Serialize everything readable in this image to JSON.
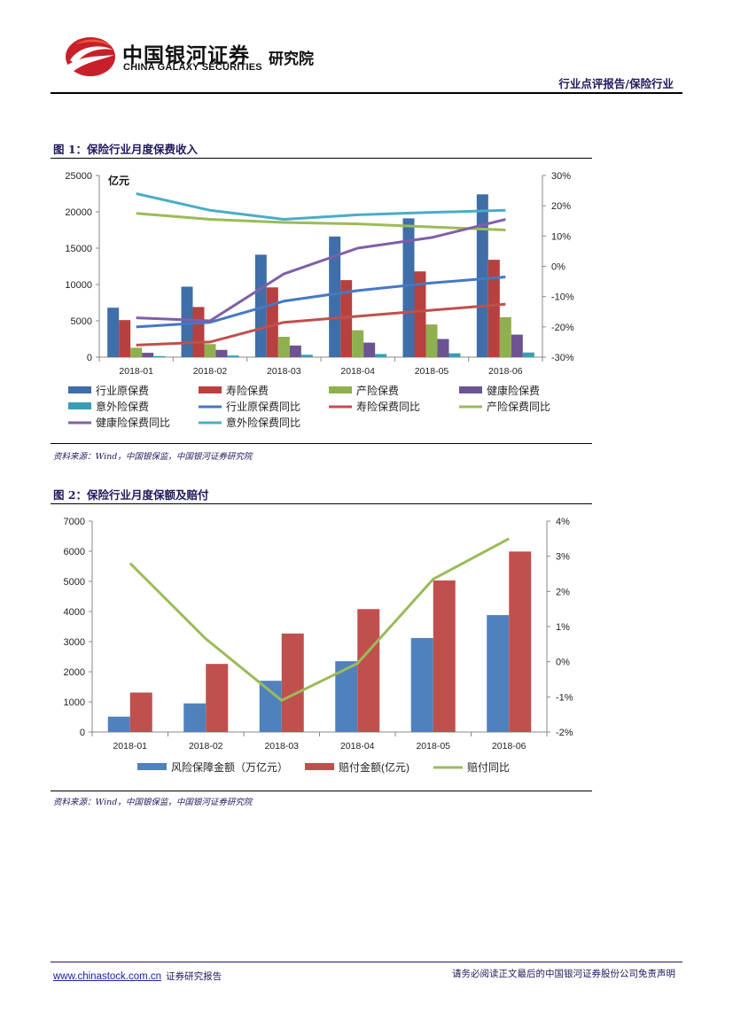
{
  "header": {
    "logo_cn": "中国银河证券",
    "logo_en": "CHINA GALAXY SECURITIES",
    "institute": "研究院",
    "doc_type": "行业点评报告/保险行业"
  },
  "figure1": {
    "title": "图 1：保险行业月度保费收入",
    "source": "资料来源：Wind，中国银保监，中国银河证券研究院",
    "chart_data": {
      "type": "bar",
      "title": "保险行业月度保费收入",
      "unit_label": "亿元",
      "categories": [
        "2018-01",
        "2018-02",
        "2018-03",
        "2018-04",
        "2018-05",
        "2018-06"
      ],
      "y_left": {
        "min": 0,
        "max": 25000,
        "ticks": [
          0,
          5000,
          10000,
          15000,
          20000,
          25000
        ],
        "tick_labels": [
          "0",
          "5000",
          "10000",
          "15000",
          "20000",
          "25000"
        ]
      },
      "y_right": {
        "min": -30,
        "max": 30,
        "ticks": [
          -30,
          -20,
          -10,
          0,
          10,
          20,
          30
        ],
        "tick_labels": [
          "-30%",
          "-20%",
          "-10%",
          "0%",
          "10%",
          "20%",
          "30%"
        ]
      },
      "bar_series": [
        {
          "name": "行业原保费",
          "color": "#3f6ea8",
          "values": [
            6800,
            9700,
            14100,
            16600,
            19100,
            22400
          ]
        },
        {
          "name": "寿险保费",
          "color": "#b6413f",
          "values": [
            5100,
            6900,
            9600,
            10600,
            11800,
            13400
          ]
        },
        {
          "name": "产险保费",
          "color": "#8fb04e",
          "values": [
            1300,
            1800,
            2800,
            3700,
            4500,
            5500
          ]
        },
        {
          "name": "健康险保费",
          "color": "#6c5391",
          "values": [
            600,
            1000,
            1600,
            2000,
            2500,
            3100
          ]
        },
        {
          "name": "意外险保费",
          "color": "#3b9db3",
          "values": [
            150,
            230,
            330,
            430,
            530,
            640
          ]
        }
      ],
      "line_series": [
        {
          "name": "行业原保费同比",
          "color": "#4678c4",
          "values": [
            -20,
            -18.5,
            -11.5,
            -8,
            -5.5,
            -3.5
          ]
        },
        {
          "name": "寿险保费同比",
          "color": "#c0504d",
          "values": [
            -26,
            -25,
            -18.5,
            -16.5,
            -14.5,
            -12.5
          ]
        },
        {
          "name": "产险保费同比",
          "color": "#9bbb59",
          "values": [
            17.5,
            15.5,
            14.5,
            14,
            13,
            12
          ]
        },
        {
          "name": "健康险保费同比",
          "color": "#7f5fa8",
          "values": [
            -17,
            -18,
            -2.5,
            6,
            9.5,
            15.5
          ]
        },
        {
          "name": "意外险保费同比",
          "color": "#4bacc6",
          "values": [
            24,
            18.5,
            15.5,
            17,
            17.8,
            18.5
          ]
        }
      ],
      "legend": [
        "行业原保费",
        "寿险保费",
        "产险保费",
        "健康险保费",
        "意外险保费",
        "行业原保费同比",
        "寿险保费同比",
        "产险保费同比",
        "健康险保费同比",
        "意外险保费同比"
      ]
    }
  },
  "figure2": {
    "title": "图 2：保险行业月度保额及赔付",
    "source": "资料来源：Wind，中国银保监，中国银河证券研究院",
    "chart_data": {
      "type": "bar",
      "title": "保险行业月度保额及赔付",
      "categories": [
        "2018-01",
        "2018-02",
        "2018-03",
        "2018-04",
        "2018-05",
        "2018-06"
      ],
      "y_left": {
        "min": 0,
        "max": 7000,
        "ticks": [
          0,
          1000,
          2000,
          3000,
          4000,
          5000,
          6000,
          7000
        ],
        "tick_labels": [
          "0",
          "1000",
          "2000",
          "3000",
          "4000",
          "5000",
          "6000",
          "7000"
        ]
      },
      "y_right": {
        "min": -2,
        "max": 4,
        "ticks": [
          -2,
          -1,
          0,
          1,
          2,
          3,
          4
        ],
        "tick_labels": [
          "-2%",
          "-1%",
          "0%",
          "1%",
          "2%",
          "3%",
          "4%"
        ]
      },
      "bar_series": [
        {
          "name": "风险保障金额（万亿元）",
          "color": "#4f81bd",
          "values": [
            510,
            950,
            1700,
            2350,
            3120,
            3880
          ]
        },
        {
          "name": "赔付金额(亿元)",
          "color": "#c0504d",
          "values": [
            1310,
            2260,
            3270,
            4080,
            5030,
            5990
          ]
        }
      ],
      "line_series": [
        {
          "name": "赔付同比",
          "color": "#9bbb59",
          "values": [
            2.8,
            0.65,
            -1.1,
            -0.05,
            2.35,
            3.5
          ]
        }
      ],
      "legend": [
        "风险保障金额（万亿元）",
        "赔付金额(亿元)",
        "赔付同比"
      ]
    }
  },
  "footer": {
    "url": "www.chinastock.com.cn",
    "report_label": "证券研究报告",
    "disclaimer": "请务必阅读正文最后的中国银河证券股份公司免责声明"
  }
}
